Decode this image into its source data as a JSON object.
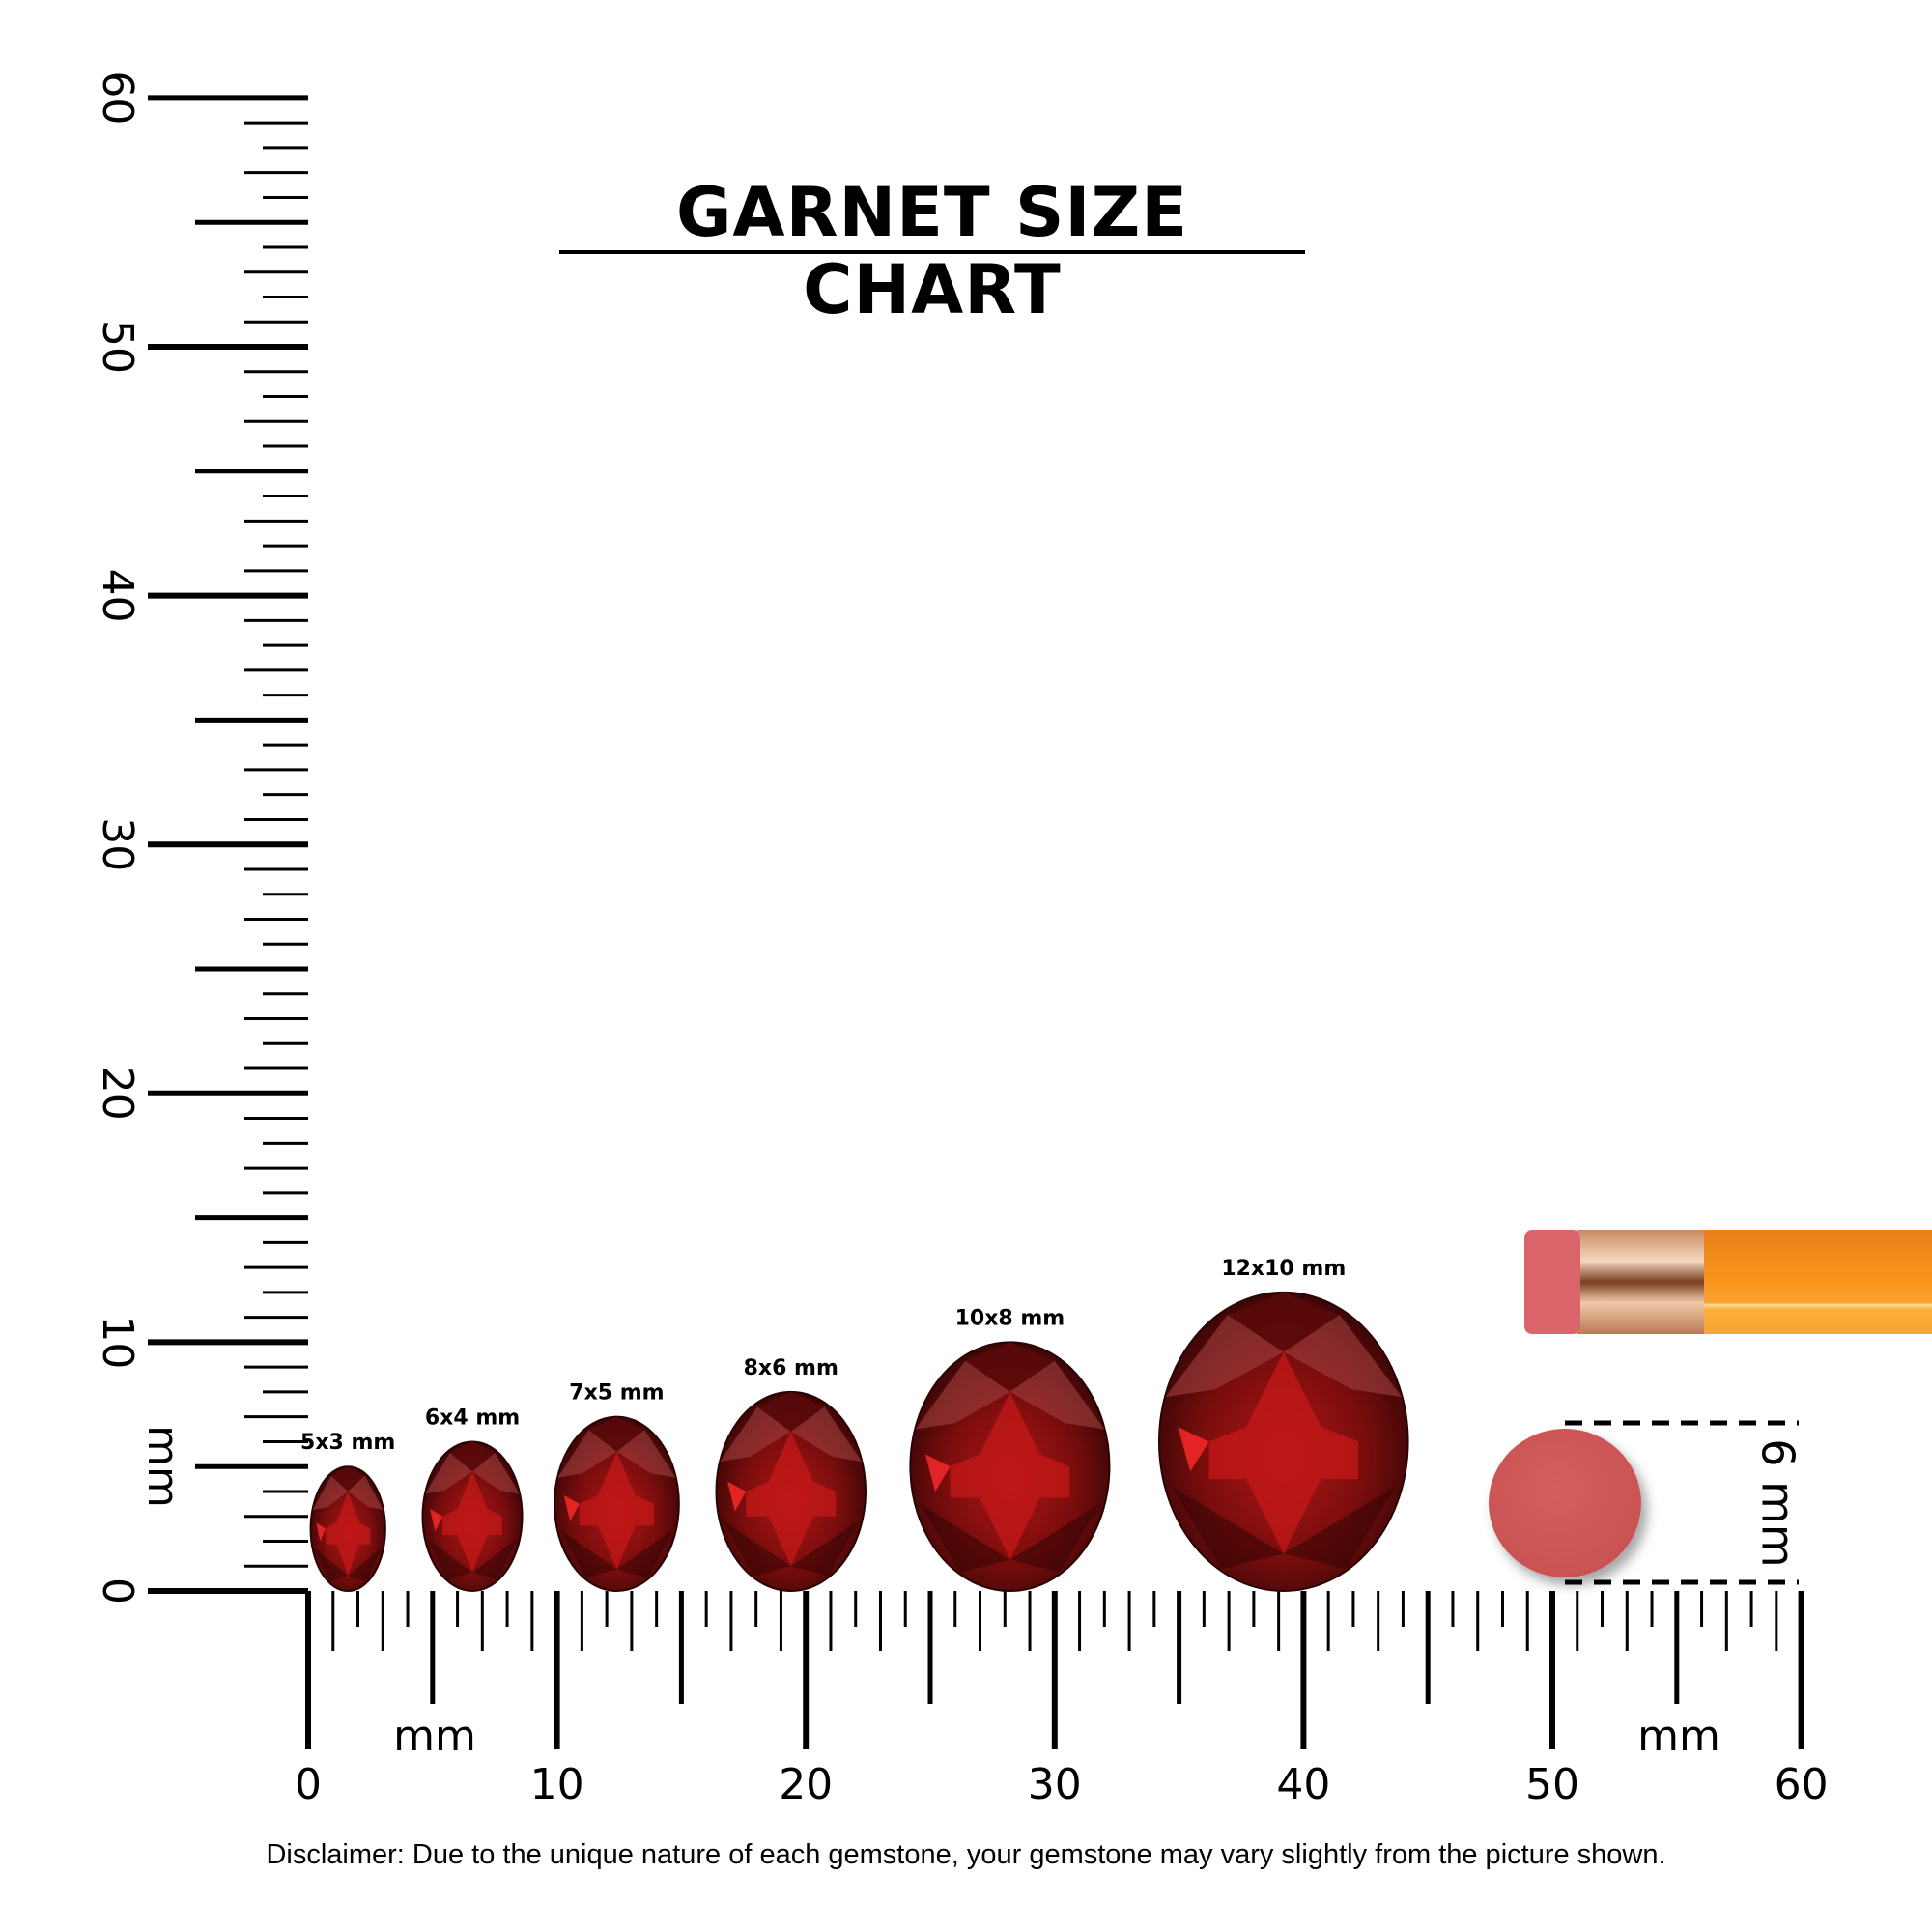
{
  "title": "GARNET SIZE CHART",
  "disclaimer": "Disclaimer: Due to the unique nature of each gemstone, your gemstone may vary slightly from the picture shown.",
  "ruler": {
    "unit_label": "mm",
    "range_mm": [
      0,
      60
    ],
    "tick_labels": [
      "0",
      "10",
      "20",
      "30",
      "40",
      "50",
      "60"
    ]
  },
  "gemstones": [
    {
      "label": "5x3 mm",
      "length_mm": 5,
      "width_mm": 3,
      "position_mm": 1.6
    },
    {
      "label": "6x4 mm",
      "length_mm": 6,
      "width_mm": 4,
      "position_mm": 6.6
    },
    {
      "label": "7x5 mm",
      "length_mm": 7,
      "width_mm": 5,
      "position_mm": 12.4
    },
    {
      "label": "8x6 mm",
      "length_mm": 8,
      "width_mm": 6,
      "position_mm": 19.4
    },
    {
      "label": "10x8 mm",
      "length_mm": 10,
      "width_mm": 8,
      "position_mm": 28.2
    },
    {
      "label": "12x10 mm",
      "length_mm": 12,
      "width_mm": 10,
      "position_mm": 39.2
    }
  ],
  "eraser_reference": {
    "label": "6 mm",
    "diameter_mm": 6,
    "color": "#d05a5a"
  },
  "colors": {
    "gem_dark": "#4a0808",
    "gem_mid": "#8c1010",
    "gem_bright": "#d81a1a",
    "pencil_body": "#f7951d",
    "ferrule": "#d9a27a",
    "eraser": "#d9646a"
  }
}
